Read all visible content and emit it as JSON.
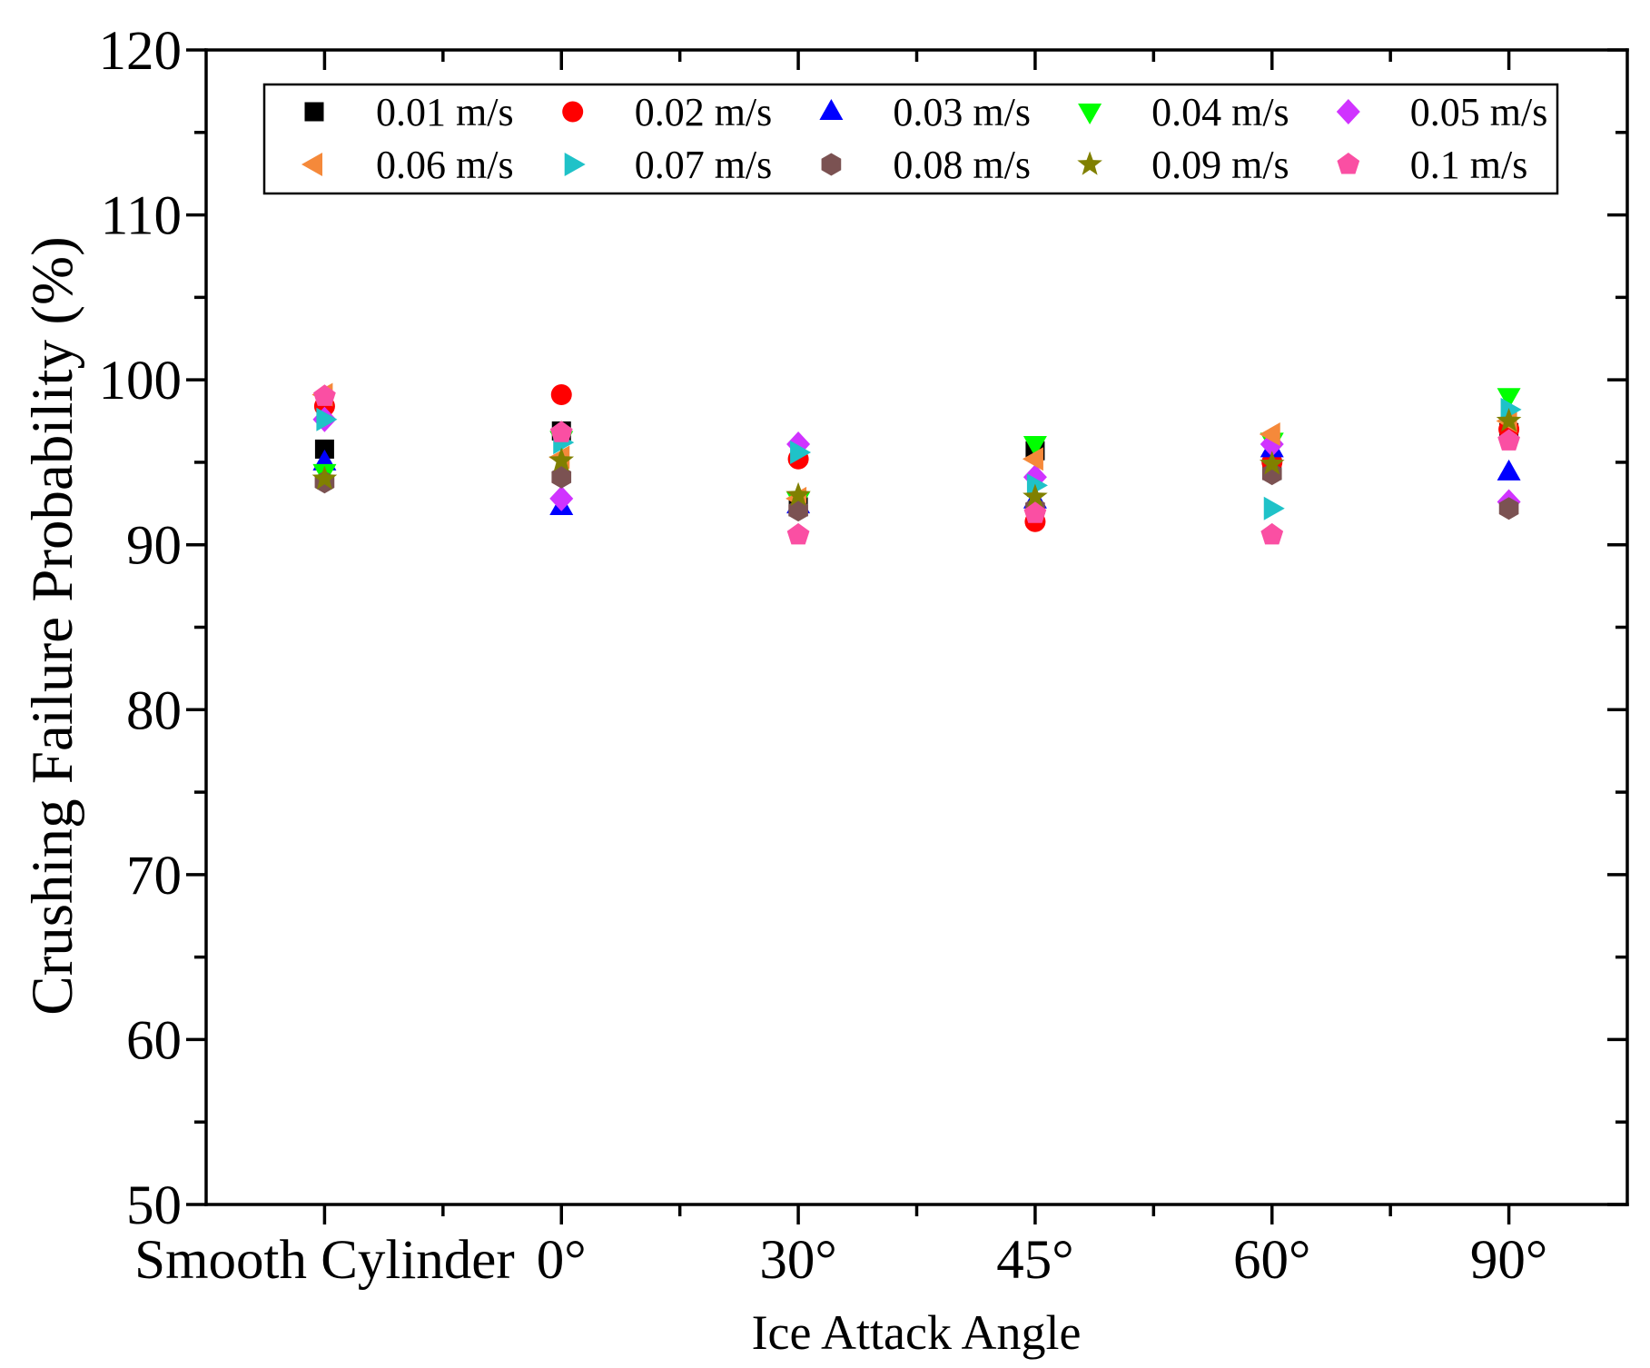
{
  "chart_data": {
    "type": "scatter",
    "title": "",
    "xlabel": "Ice Attack Angle",
    "ylabel": "Crushing Failure Probability (%)",
    "categories": [
      "Smooth Cylinder",
      "0°",
      "30°",
      "45°",
      "60°",
      "90°"
    ],
    "yticks": [
      50,
      60,
      70,
      80,
      90,
      100,
      110,
      120
    ],
    "ylim": [
      50,
      120
    ],
    "grid": false,
    "legend_placement": "top",
    "series": [
      {
        "name": "0.01 m/s",
        "marker": "square",
        "color": "#000000",
        "values": [
          95.8,
          96.9,
          92.3,
          95.7,
          94.5,
          96.8
        ]
      },
      {
        "name": "0.02 m/s",
        "marker": "circle",
        "color": "#FF0000",
        "values": [
          98.4,
          99.1,
          95.2,
          91.4,
          95.0,
          97.0
        ]
      },
      {
        "name": "0.03 m/s",
        "marker": "triangle-up",
        "color": "#0000FF",
        "values": [
          95.0,
          92.3,
          92.4,
          92.7,
          95.8,
          94.4
        ]
      },
      {
        "name": "0.04 m/s",
        "marker": "triangle-down",
        "color": "#00FF00",
        "values": [
          94.4,
          96.4,
          92.7,
          96.1,
          96.3,
          99.0
        ]
      },
      {
        "name": "0.05 m/s",
        "marker": "diamond",
        "color": "#D033FF",
        "values": [
          97.6,
          92.8,
          96.1,
          94.1,
          96.1,
          92.6
        ]
      },
      {
        "name": "0.06 m/s",
        "marker": "triangle-left",
        "color": "#F5893A",
        "values": [
          99.1,
          95.3,
          92.8,
          95.2,
          96.7,
          97.5
        ]
      },
      {
        "name": "0.07 m/s",
        "marker": "triangle-right",
        "color": "#1FC2C8",
        "values": [
          97.6,
          96.2,
          95.6,
          93.6,
          92.2,
          98.2
        ]
      },
      {
        "name": "0.08 m/s",
        "marker": "hexagon",
        "color": "#7B5252",
        "values": [
          93.8,
          94.1,
          92.1,
          92.2,
          94.3,
          92.2
        ]
      },
      {
        "name": "0.09 m/s",
        "marker": "star",
        "color": "#808000",
        "values": [
          94.0,
          95.1,
          93.0,
          92.9,
          94.9,
          97.5
        ]
      },
      {
        "name": "0.1 m/s",
        "marker": "pentagon",
        "color": "#FA4FA3",
        "values": [
          99.0,
          96.8,
          90.6,
          91.9,
          90.6,
          96.3
        ]
      }
    ]
  }
}
